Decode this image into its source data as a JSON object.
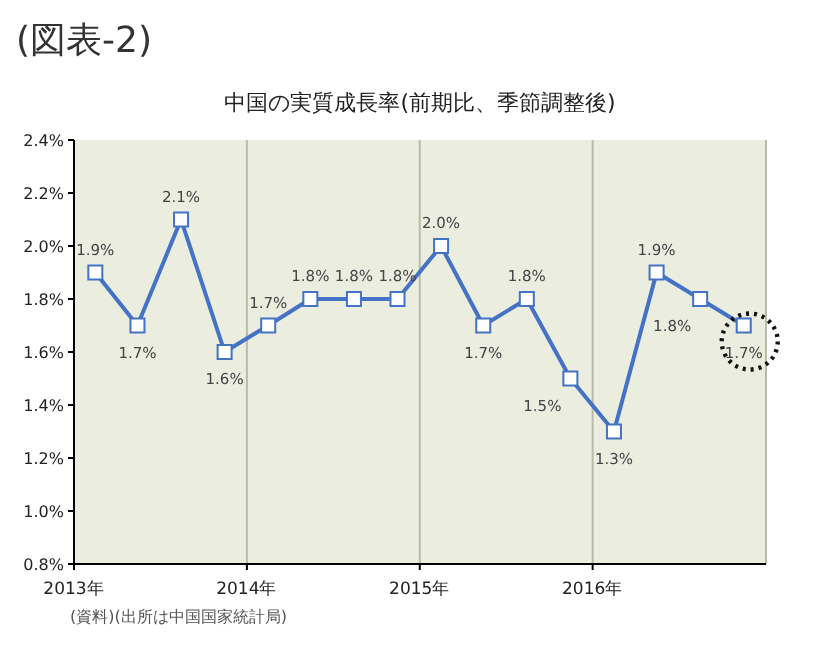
{
  "chart_data": {
    "type": "line",
    "title": "(図表-2)",
    "subtitle": "中国の実質成長率(前期比、季節調整後)",
    "annotations": [
      "(資料)(出所は中国国家統計局)"
    ],
    "x": [
      "2013-02-15",
      "2013-05-15",
      "2013-08-15",
      "2013-11-15",
      "2014-02-15",
      "2014-05-15",
      "2014-08-15",
      "2014-11-15",
      "2015-02-15",
      "2015-05-15",
      "2015-08-15",
      "2015-11-15",
      "2016-02-15",
      "2016-05-15",
      "2016-08-15",
      "2016-11-15"
    ],
    "series": [
      {
        "color": "#4472c4",
        "values": [
          1.9,
          1.7,
          2.1,
          1.6,
          1.7,
          1.8,
          1.8,
          1.8,
          2.0,
          1.7,
          1.8,
          1.5,
          1.3,
          1.9,
          1.8,
          1.7
        ],
        "value_labels": [
          "1.9%",
          "1.7%",
          "2.1%",
          "1.6%",
          "1.7%",
          "1.8%",
          "1.8%",
          "1.8%",
          "2.0%",
          "1.7%",
          "1.8%",
          "1.5%",
          "1.3%",
          "1.9%",
          "1.8%",
          "1.7%"
        ]
      }
    ],
    "xlim": [
      "2013",
      "2017"
    ],
    "xticks": [
      {
        "value": "2013",
        "label": "2013年"
      },
      {
        "value": "2014",
        "label": "2014年"
      },
      {
        "value": "2015",
        "label": "2015年"
      },
      {
        "value": "2016",
        "label": "2016年"
      }
    ],
    "ylim": [
      0.8,
      2.4
    ],
    "yticks": [
      {
        "value": 0.8,
        "label": "0.8%"
      },
      {
        "value": 1.0,
        "label": "1.0%"
      },
      {
        "value": 1.2,
        "label": "1.2%"
      },
      {
        "value": 1.4,
        "label": "1.4%"
      },
      {
        "value": 1.6,
        "label": "1.6%"
      },
      {
        "value": 1.8,
        "label": "1.8%"
      },
      {
        "value": 2.0,
        "label": "2.0%"
      },
      {
        "value": 2.2,
        "label": "2.2%"
      },
      {
        "value": 2.4,
        "label": "2.4%"
      }
    ],
    "grid": "x",
    "marker": "square",
    "line_style": "solid"
  }
}
